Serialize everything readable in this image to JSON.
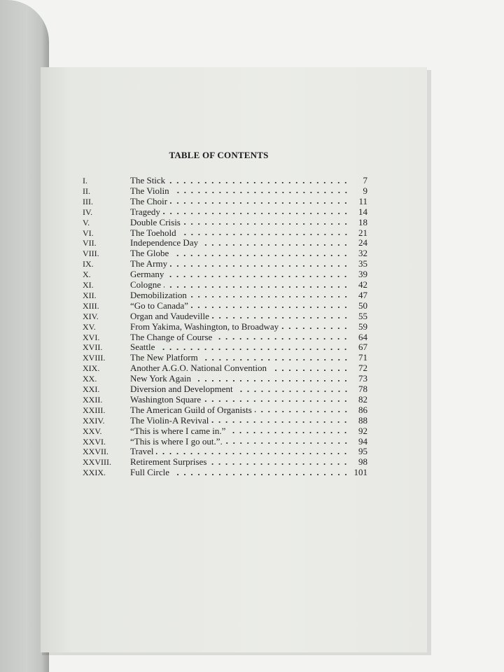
{
  "toc": {
    "title": "TABLE OF CONTENTS",
    "entries": [
      {
        "num": "I.",
        "title": "The Stick",
        "page": "7"
      },
      {
        "num": "II.",
        "title": "The Violin",
        "page": "9"
      },
      {
        "num": "III.",
        "title": "The Choir",
        "page": "11"
      },
      {
        "num": "IV.",
        "title": "Tragedy",
        "page": "14"
      },
      {
        "num": "V.",
        "title": "Double Crisis",
        "page": "18"
      },
      {
        "num": "VI.",
        "title": "The Toehold",
        "page": "21"
      },
      {
        "num": "VII.",
        "title": "Independence Day",
        "page": "24"
      },
      {
        "num": "VIII.",
        "title": "The Globe",
        "page": "32"
      },
      {
        "num": "IX.",
        "title": "The Army",
        "page": "35"
      },
      {
        "num": "X.",
        "title": "Germany",
        "page": "39"
      },
      {
        "num": "XI.",
        "title": "Cologne",
        "page": "42"
      },
      {
        "num": "XII.",
        "title": "Demobilization",
        "page": "47"
      },
      {
        "num": "XIII.",
        "title": "“Go to Canada”",
        "page": "50"
      },
      {
        "num": "XIV.",
        "title": "Organ and Vaudeville",
        "page": "55"
      },
      {
        "num": "XV.",
        "title": "From Yakima, Washington, to Broadway",
        "page": "59"
      },
      {
        "num": "XVI.",
        "title": "The Change of Course",
        "page": "64"
      },
      {
        "num": "XVII.",
        "title": "Seattle",
        "page": "67"
      },
      {
        "num": "XVIII.",
        "title": "The New Platform",
        "page": "71"
      },
      {
        "num": "XIX.",
        "title": "Another A.G.O. National Convention",
        "page": "72"
      },
      {
        "num": "XX.",
        "title": "New York Again",
        "page": "73"
      },
      {
        "num": "XXI.",
        "title": "Diversion and Development",
        "page": "78"
      },
      {
        "num": "XXII.",
        "title": "Washington Square",
        "page": "82"
      },
      {
        "num": "XXIII.",
        "title": "The American Guild of Organists",
        "page": "86"
      },
      {
        "num": "XXIV.",
        "title": "The Violin-A Revival",
        "page": "88"
      },
      {
        "num": "XXV.",
        "title": "“This is where I came in.”",
        "page": "92"
      },
      {
        "num": "XXVI.",
        "title": "“This is where I go out.”.",
        "page": "94"
      },
      {
        "num": "XXVII.",
        "title": "Travel",
        "page": "95"
      },
      {
        "num": "XXVIII.",
        "title": "Retirement Surprises",
        "page": "98"
      },
      {
        "num": "XXIX.",
        "title": "Full Circle",
        "page": "101"
      }
    ]
  },
  "colors": {
    "page": "#ebece8",
    "background": "#f3f3f2",
    "ink": "#222222"
  }
}
